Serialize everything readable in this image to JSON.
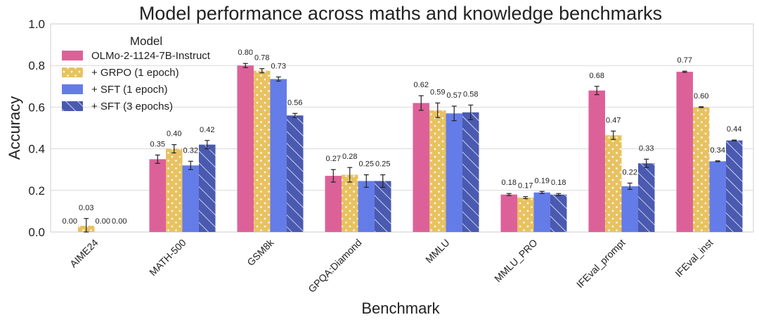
{
  "chart_data": {
    "type": "bar",
    "title": "Model performance across maths and knowledge benchmarks",
    "xlabel": "Benchmark",
    "ylabel": "Accuracy",
    "ylim": [
      0,
      1.0
    ],
    "yticks": [
      "0.0",
      "0.2",
      "0.4",
      "0.6",
      "0.8",
      "1.0"
    ],
    "grid": true,
    "legend": {
      "title": "Model",
      "position": "top-left"
    },
    "categories": [
      "AIME24",
      "MATH-500",
      "GSM8k",
      "GPQA:Diamond",
      "MMLU",
      "MMLU_PRO",
      "IFEval_prompt",
      "IFEval_inst"
    ],
    "series": [
      {
        "name": "OLMo-2-1124-7B-Instruct",
        "color": "#dd6199",
        "pattern": "none",
        "values": [
          0.0,
          0.35,
          0.8,
          0.27,
          0.62,
          0.18,
          0.68,
          0.77
        ],
        "errors": [
          0.0,
          0.02,
          0.01,
          0.03,
          0.035,
          0.005,
          0.02,
          0.003
        ],
        "labels": [
          "0.00",
          "0.35",
          "0.80",
          "0.27",
          "0.62",
          "0.18",
          "0.68",
          "0.77"
        ]
      },
      {
        "name": "+ GRPO (1 epoch)",
        "color": "#e8c261",
        "pattern": "dots",
        "values": [
          0.03,
          0.4,
          0.775,
          0.275,
          0.585,
          0.165,
          0.465,
          0.6
        ],
        "errors": [
          0.035,
          0.02,
          0.01,
          0.035,
          0.035,
          0.005,
          0.02,
          0.002
        ],
        "labels": [
          "0.03",
          "0.40",
          "0.78",
          "0.28",
          "0.59",
          "0.17",
          "0.47",
          "0.60"
        ]
      },
      {
        "name": "+ SFT (1 epoch)",
        "color": "#647ce8",
        "pattern": "none",
        "values": [
          0.0,
          0.32,
          0.735,
          0.245,
          0.57,
          0.19,
          0.22,
          0.34
        ],
        "errors": [
          0.0,
          0.02,
          0.01,
          0.03,
          0.035,
          0.005,
          0.015,
          0.002
        ],
        "labels": [
          "0.00",
          "0.32",
          "0.73",
          "0.25",
          "0.57",
          "0.19",
          "0.22",
          "0.34"
        ]
      },
      {
        "name": "+ SFT (3 epochs)",
        "color": "#4a5ab0",
        "pattern": "hatch",
        "values": [
          0.0,
          0.42,
          0.56,
          0.245,
          0.575,
          0.18,
          0.33,
          0.44
        ],
        "errors": [
          0.0,
          0.02,
          0.01,
          0.03,
          0.035,
          0.005,
          0.02,
          0.002
        ],
        "labels": [
          "0.00",
          "0.42",
          "0.56",
          "0.25",
          "0.58",
          "0.18",
          "0.33",
          "0.44"
        ]
      }
    ]
  }
}
